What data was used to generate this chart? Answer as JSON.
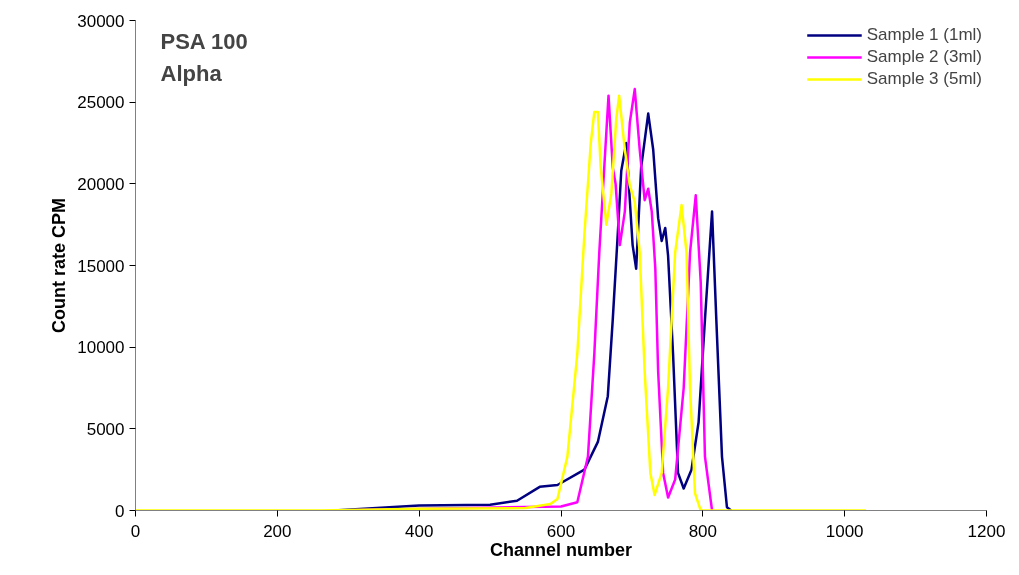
{
  "chart_data": {
    "type": "line",
    "title": "PSA 100\nAlpha",
    "xlabel": "Channel number",
    "ylabel": "Count rate CPM",
    "xlim": [
      0,
      1200
    ],
    "xticks": [
      0,
      200,
      400,
      600,
      800,
      1000,
      1200
    ],
    "ylim": [
      0,
      30000
    ],
    "yticks": [
      0,
      5000,
      10000,
      15000,
      20000,
      25000,
      30000
    ],
    "grid": false,
    "legend": "top right",
    "marker": "none",
    "line_style": "solid",
    "series": [
      {
        "name": "Sample 1 (1ml)",
        "color": "#000080",
        "x": [
          280,
          400,
          500,
          538,
          570,
          595,
          633,
          652,
          666,
          673,
          680,
          685,
          692,
          701,
          706,
          713,
          723,
          730,
          737,
          742,
          747,
          751,
          758,
          765,
          773,
          784,
          794,
          803,
          813,
          819,
          827,
          834,
          840
        ],
        "values": [
          0,
          300,
          350,
          600,
          1450,
          1560,
          2500,
          4200,
          7000,
          11700,
          16900,
          20800,
          22500,
          16250,
          14800,
          21000,
          24300,
          22100,
          17900,
          16500,
          17300,
          15600,
          9600,
          2300,
          1350,
          2500,
          5400,
          11700,
          18300,
          11700,
          3300,
          200,
          0
        ]
      },
      {
        "name": "Sample 2 (3ml)",
        "color": "#ff00ff",
        "x": [
          280,
          600,
          623,
          638,
          647,
          654,
          661,
          667,
          673,
          677,
          683,
          690,
          697,
          704,
          711,
          718,
          723,
          728,
          733,
          737,
          744,
          751,
          761,
          773,
          782,
          790,
          797,
          803,
          813
        ],
        "values": [
          0,
          250,
          500,
          3300,
          9600,
          15800,
          21000,
          25400,
          21000,
          20000,
          16250,
          18300,
          23750,
          25800,
          22100,
          19000,
          19700,
          18300,
          14800,
          8500,
          2300,
          800,
          1900,
          7500,
          15800,
          19300,
          14000,
          3300,
          0
        ]
      },
      {
        "name": "Sample 3 (5ml)",
        "color": "#ffff00",
        "x": [
          0,
          260,
          400,
          550,
          585,
          595,
          609,
          623,
          633,
          642,
          647,
          652,
          656,
          664,
          671,
          678,
          682,
          690,
          697,
          704,
          711,
          718,
          726,
          732,
          742,
          751,
          761,
          770,
          777,
          782,
          789,
          797,
          1030
        ],
        "values": [
          0,
          0,
          100,
          150,
          400,
          700,
          3300,
          9600,
          16900,
          22500,
          24400,
          24400,
          21000,
          17500,
          19400,
          24000,
          25400,
          22100,
          19900,
          18900,
          15800,
          8500,
          2300,
          950,
          2300,
          7500,
          15800,
          18700,
          15800,
          7500,
          1050,
          0,
          0
        ]
      }
    ]
  }
}
